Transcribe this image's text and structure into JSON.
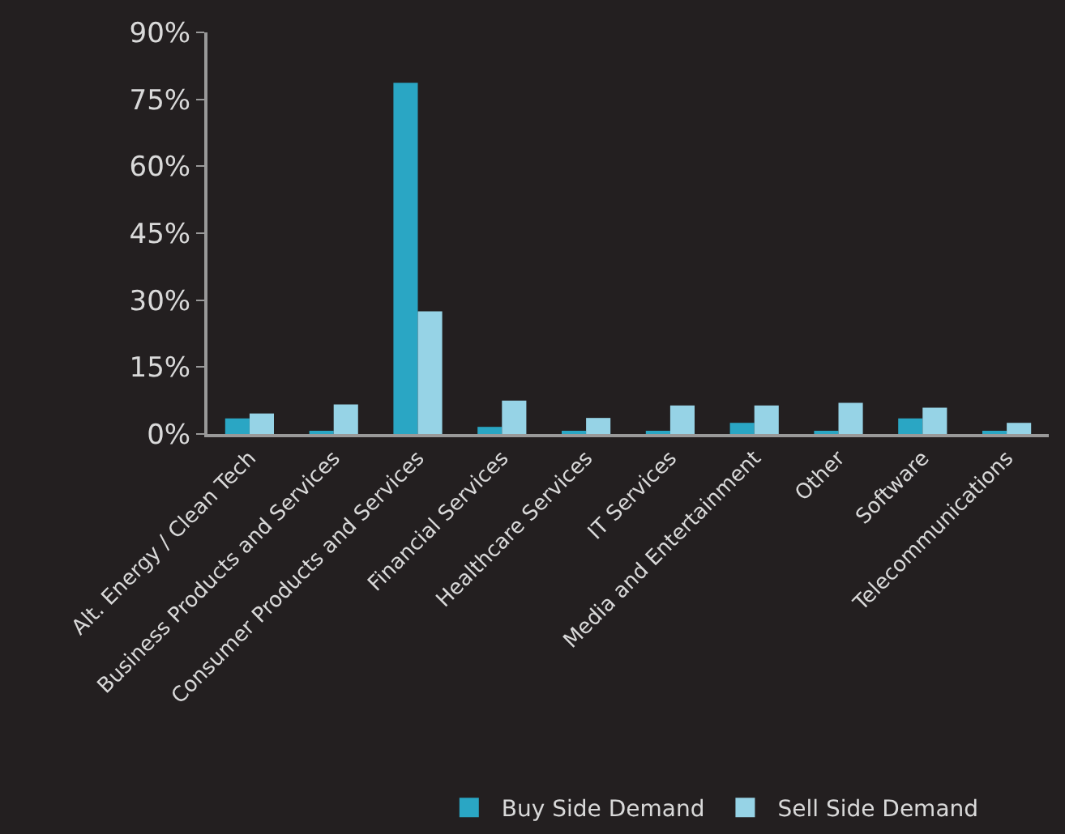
{
  "chart_data": {
    "type": "bar",
    "categories": [
      "Alt. Energy / Clean Tech",
      "Business Products and Services",
      "Consumer Products and Services",
      "Financial Services",
      "Healthcare Services",
      "IT Services",
      "Media and Entertainment",
      "Other",
      "Software",
      "Telecommunications"
    ],
    "series": [
      {
        "name": "Buy Side Demand",
        "color": "#2aa6c4",
        "values": [
          3.5,
          0.7,
          78.7,
          1.6,
          0.7,
          0.7,
          2.5,
          0.7,
          3.5,
          0.7
        ]
      },
      {
        "name": "Sell Side Demand",
        "color": "#96d3e6",
        "values": [
          4.6,
          6.6,
          27.5,
          7.5,
          3.6,
          6.4,
          6.4,
          7.0,
          5.9,
          2.5
        ]
      }
    ],
    "ylim": [
      0,
      90
    ],
    "yticks": [
      {
        "value": 0,
        "label": "0%"
      },
      {
        "value": 15,
        "label": "15%"
      },
      {
        "value": 30,
        "label": "30%"
      },
      {
        "value": 45,
        "label": "45%"
      },
      {
        "value": 60,
        "label": "60%"
      },
      {
        "value": 75,
        "label": "75%"
      },
      {
        "value": 90,
        "label": "90%"
      }
    ],
    "grid": false,
    "legend": "bottom"
  }
}
